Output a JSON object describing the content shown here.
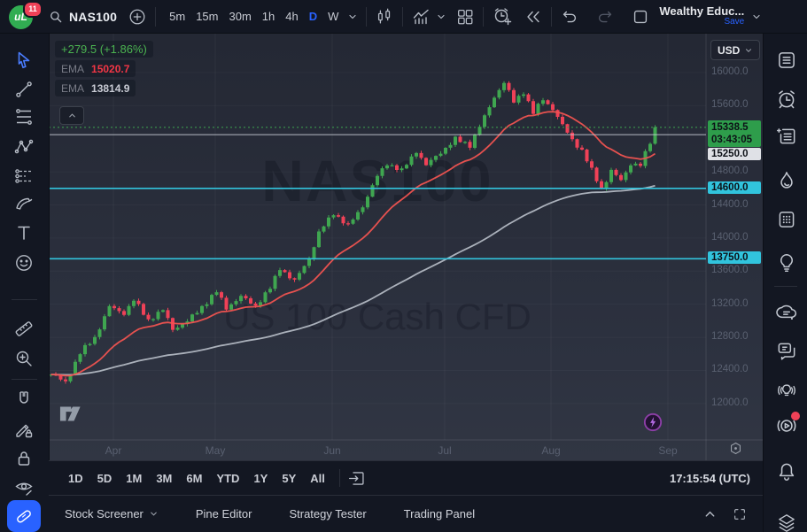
{
  "top_toolbar": {
    "logo_glyph": "uL",
    "notification_badge": "11",
    "symbol": "NAS100",
    "intervals": [
      "5m",
      "15m",
      "30m",
      "1h",
      "4h",
      "D",
      "W"
    ],
    "active_interval": "D",
    "account_name": "Wealthy Educ...",
    "save_label": "Save",
    "icons": [
      "search-icon",
      "compare-add-icon",
      "candles-style-icon",
      "indicators-icon",
      "layout-grid-icon",
      "alert-add-icon",
      "replay-icon",
      "undo-icon",
      "redo-icon",
      "save-layout-icon"
    ]
  },
  "left_toolbar": {
    "tools": [
      "cursor",
      "trend-line",
      "fib-retracement",
      "xabcd-pattern",
      "projection",
      "brush",
      "text",
      "emoji",
      "measure",
      "zoom-in",
      "magnet",
      "drawing-lock",
      "lock-all",
      "hide-drawings",
      "active-tool"
    ]
  },
  "right_sidebar": {
    "icons": [
      "watchlist",
      "alerts",
      "news",
      "hotlists",
      "calendar",
      "ideas",
      "chat",
      "private-chat",
      "live-ideas",
      "streams",
      "notifications",
      "object-tree"
    ]
  },
  "legend": {
    "change": "+279.5 (+1.86%)",
    "ema1_label": "EMA",
    "ema1_value": "15020.7",
    "ema2_label": "EMA",
    "ema2_value": "13814.9"
  },
  "watermark": {
    "line1": "NAS100",
    "line2": "US 100 Cash CFD"
  },
  "price_scale": {
    "currency": "USD",
    "last_price": "15338.5",
    "countdown": "03:43:05",
    "prev_close": "15250.0",
    "level1": "14600.0",
    "level2": "13750.0"
  },
  "bottom_toolbar": {
    "ranges": [
      "1D",
      "5D",
      "1M",
      "3M",
      "6M",
      "YTD",
      "1Y",
      "5Y",
      "All"
    ],
    "clock": "17:15:54 (UTC)"
  },
  "bottom_panel": {
    "tabs": [
      "Stock Screener",
      "Pine Editor",
      "Strategy Tester",
      "Trading Panel"
    ]
  },
  "chart_data": {
    "type": "candlestick",
    "title": "NAS100",
    "subtitle": "US 100 Cash CFD",
    "currency": "USD",
    "change": "+279.5",
    "change_pct": "+1.86%",
    "last_price": 15338.5,
    "countdown": "03:43:05",
    "prev_close_level": 15250.0,
    "support_levels": [
      14600.0,
      13750.0
    ],
    "ema_values": [
      15020.7,
      13814.9
    ],
    "y_axis": {
      "min": 11560,
      "max": 16470,
      "ticks": [
        16000.0,
        15600.0,
        14800.0,
        14400.0,
        14000.0,
        13600.0,
        13200.0,
        12800.0,
        12400.0,
        12000.0
      ]
    },
    "x_axis": {
      "months": [
        "Apr",
        "May",
        "Jun",
        "Jul",
        "Aug",
        "Sep"
      ]
    },
    "close_waypoints_by_candle_index": [
      [
        0,
        12350
      ],
      [
        3,
        12250
      ],
      [
        6,
        12600
      ],
      [
        9,
        12800
      ],
      [
        12,
        13180
      ],
      [
        15,
        13100
      ],
      [
        17,
        13250
      ],
      [
        20,
        13000
      ],
      [
        23,
        13120
      ],
      [
        25,
        12900
      ],
      [
        28,
        13000
      ],
      [
        31,
        13180
      ],
      [
        34,
        13350
      ],
      [
        36,
        13150
      ],
      [
        39,
        13280
      ],
      [
        42,
        13180
      ],
      [
        45,
        13400
      ],
      [
        47,
        13650
      ],
      [
        50,
        13480
      ],
      [
        53,
        13750
      ],
      [
        55,
        14050
      ],
      [
        58,
        14300
      ],
      [
        61,
        14150
      ],
      [
        64,
        14400
      ],
      [
        67,
        14750
      ],
      [
        69,
        14900
      ],
      [
        72,
        14800
      ],
      [
        75,
        15050
      ],
      [
        77,
        14880
      ],
      [
        80,
        15050
      ],
      [
        83,
        15200
      ],
      [
        86,
        15120
      ],
      [
        89,
        15450
      ],
      [
        91,
        15700
      ],
      [
        93,
        15880
      ],
      [
        95,
        15650
      ],
      [
        97,
        15780
      ],
      [
        99,
        15520
      ],
      [
        101,
        15680
      ],
      [
        103,
        15560
      ],
      [
        105,
        15350
      ],
      [
        107,
        15180
      ],
      [
        109,
        15050
      ],
      [
        111,
        14820
      ],
      [
        113,
        14600
      ],
      [
        115,
        14820
      ],
      [
        117,
        14700
      ],
      [
        119,
        14900
      ],
      [
        121,
        14870
      ],
      [
        123,
        15150
      ],
      [
        124,
        15338.5
      ]
    ],
    "colors": {
      "up": "#3fa650",
      "down": "#ef4157",
      "ema_fast": "#ef5350",
      "ema_slow": "#b2b8c2",
      "level_cyan": "#31c4dd",
      "prev_close_line": "#cfd3dc",
      "last_price_line": "#3fa650",
      "last_label_bg": "#2e9d4b",
      "prev_label_bg": "#dfe1e6",
      "accent_blue": "#2962ff"
    }
  }
}
